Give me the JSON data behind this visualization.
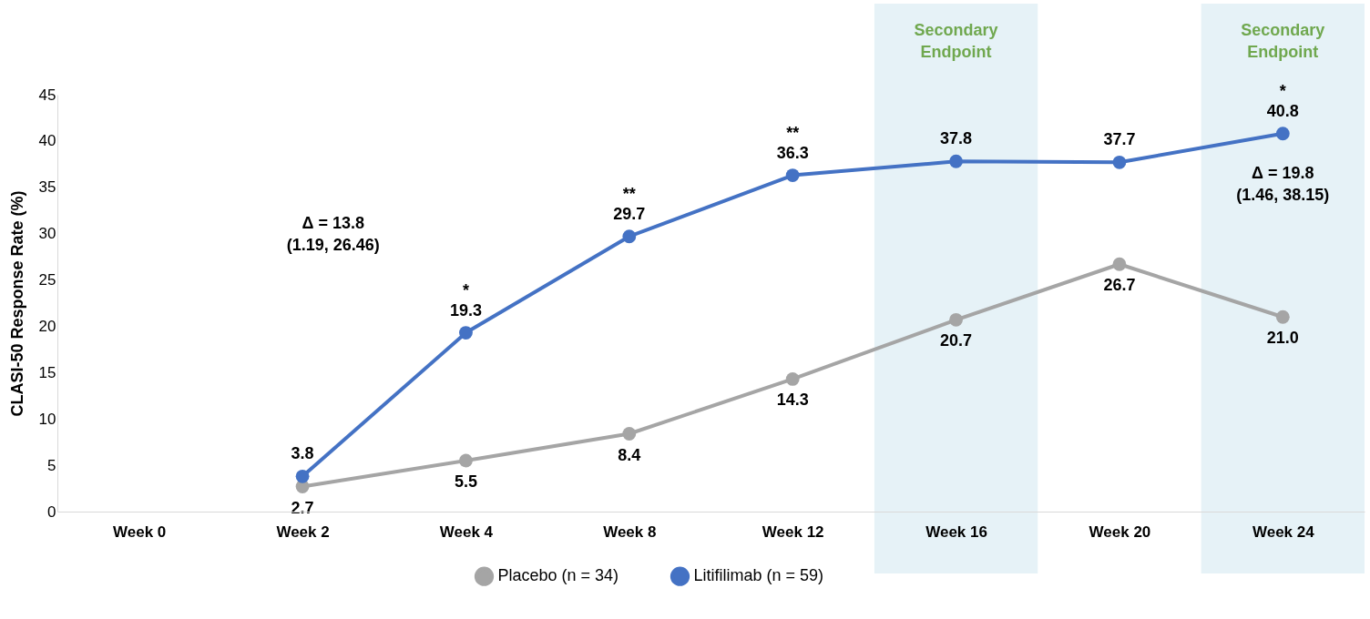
{
  "chart_data": {
    "type": "line",
    "ylabel": "CLASI-50 Response Rate (%)",
    "categories": [
      "Week 0",
      "Week 2",
      "Week 4",
      "Week 8",
      "Week 12",
      "Week 16",
      "Week 20",
      "Week 24"
    ],
    "series": [
      {
        "name": "Placebo (n = 34)",
        "color": "#a5a5a5",
        "values": [
          null,
          2.7,
          5.5,
          8.4,
          14.3,
          20.7,
          26.7,
          21.0
        ],
        "value_labels": [
          null,
          "2.7",
          "5.5",
          "8.4",
          "14.3",
          "20.7",
          "26.7",
          "21.0"
        ]
      },
      {
        "name": "Litifilimab (n = 59)",
        "color": "#4472c4",
        "values": [
          null,
          3.8,
          19.3,
          29.7,
          36.3,
          37.8,
          37.7,
          40.8
        ],
        "value_labels": [
          null,
          "3.8",
          "19.3",
          "29.7",
          "36.3",
          "37.8",
          "37.7",
          "40.8"
        ]
      }
    ],
    "ylim": [
      0,
      45
    ],
    "yticks": [
      0,
      5,
      10,
      15,
      20,
      25,
      30,
      35,
      40,
      45
    ],
    "bands": [
      {
        "axis": "x",
        "from": "Week 16",
        "to": "Week 16",
        "label": "Secondary Endpoint",
        "color": "#e6f2f7"
      },
      {
        "axis": "x",
        "from": "Week 24",
        "to": "Week 24",
        "label": "Secondary Endpoint",
        "color": "#e6f2f7"
      }
    ],
    "annotations": [
      {
        "text": "*",
        "x": "Week 4",
        "y": 19.3
      },
      {
        "text": "**",
        "x": "Week 8",
        "y": 29.7
      },
      {
        "text": "**",
        "x": "Week 12",
        "y": 36.3
      },
      {
        "text": "*",
        "x": "Week 24",
        "y": 40.8
      },
      "Δ = 13.8\n(1.19, 26.46)",
      {
        "text": "Δ = 19.8\n(1.46, 38.15)",
        "x": "Week 24",
        "y": 40.8
      }
    ],
    "grid": false,
    "legend": "bottom",
    "marker": "circle",
    "line_style": "solid"
  }
}
